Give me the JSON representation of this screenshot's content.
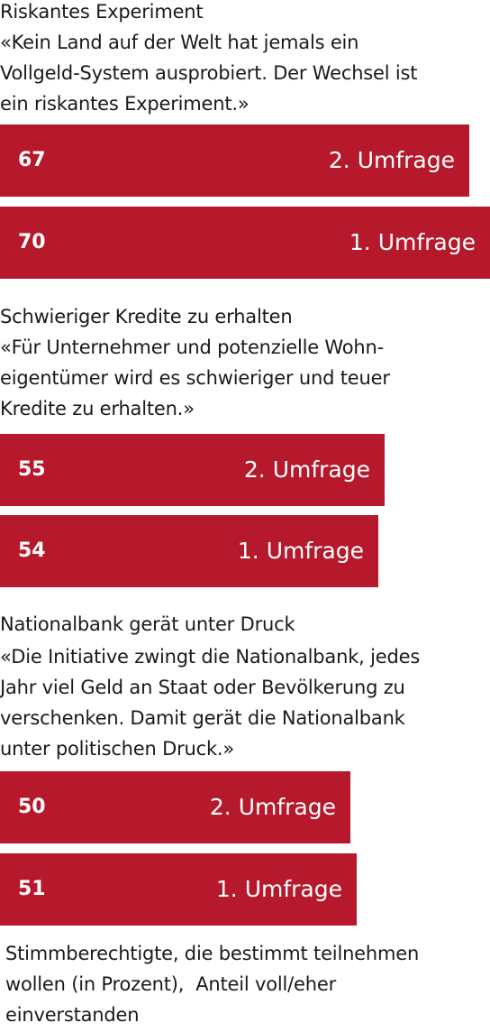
{
  "chart_data": {
    "type": "bar",
    "orientation": "horizontal",
    "xlim": [
      0,
      70
    ],
    "groups": [
      {
        "title": "Riskantes Experiment",
        "quote": [
          "«Kein Land auf der Welt hat jemals ein",
          "Vollgeld-System ausprobiert. Der Wechsel ist",
          "ein riskantes Experiment.»"
        ],
        "bars": [
          {
            "label": "2. Umfrage",
            "value": 67
          },
          {
            "label": "1. Umfrage",
            "value": 70
          }
        ]
      },
      {
        "title": "Schwieriger Kredite zu erhalten",
        "quote": [
          "«Für Unternehmer und potenzielle Wohn-",
          "eigentümer wird es schwieriger und teuer",
          "Kredite zu erhalten.»"
        ],
        "bars": [
          {
            "label": "2. Umfrage",
            "value": 55
          },
          {
            "label": "1. Umfrage",
            "value": 54
          }
        ]
      },
      {
        "title": "Nationalbank gerät unter Druck",
        "quote": [
          "«Die Initiative zwingt die Nationalbank, jedes",
          " Jahr viel Geld an Staat oder Bevölkerung zu",
          "verschenken. Damit gerät die Nationalbank",
          "unter politischen Druck.»"
        ],
        "bars": [
          {
            "label": "2. Umfrage",
            "value": 50
          },
          {
            "label": "1. Umfrage",
            "value": 51
          }
        ]
      }
    ],
    "colors": {
      "bar": "#b5192b",
      "bar_text": "#ffffff"
    }
  },
  "footnote": [
    "Stimmberechtigte, die bestimmt teilnehmen",
    "wollen (in Prozent),  Anteil voll/eher",
    "einverstanden"
  ]
}
